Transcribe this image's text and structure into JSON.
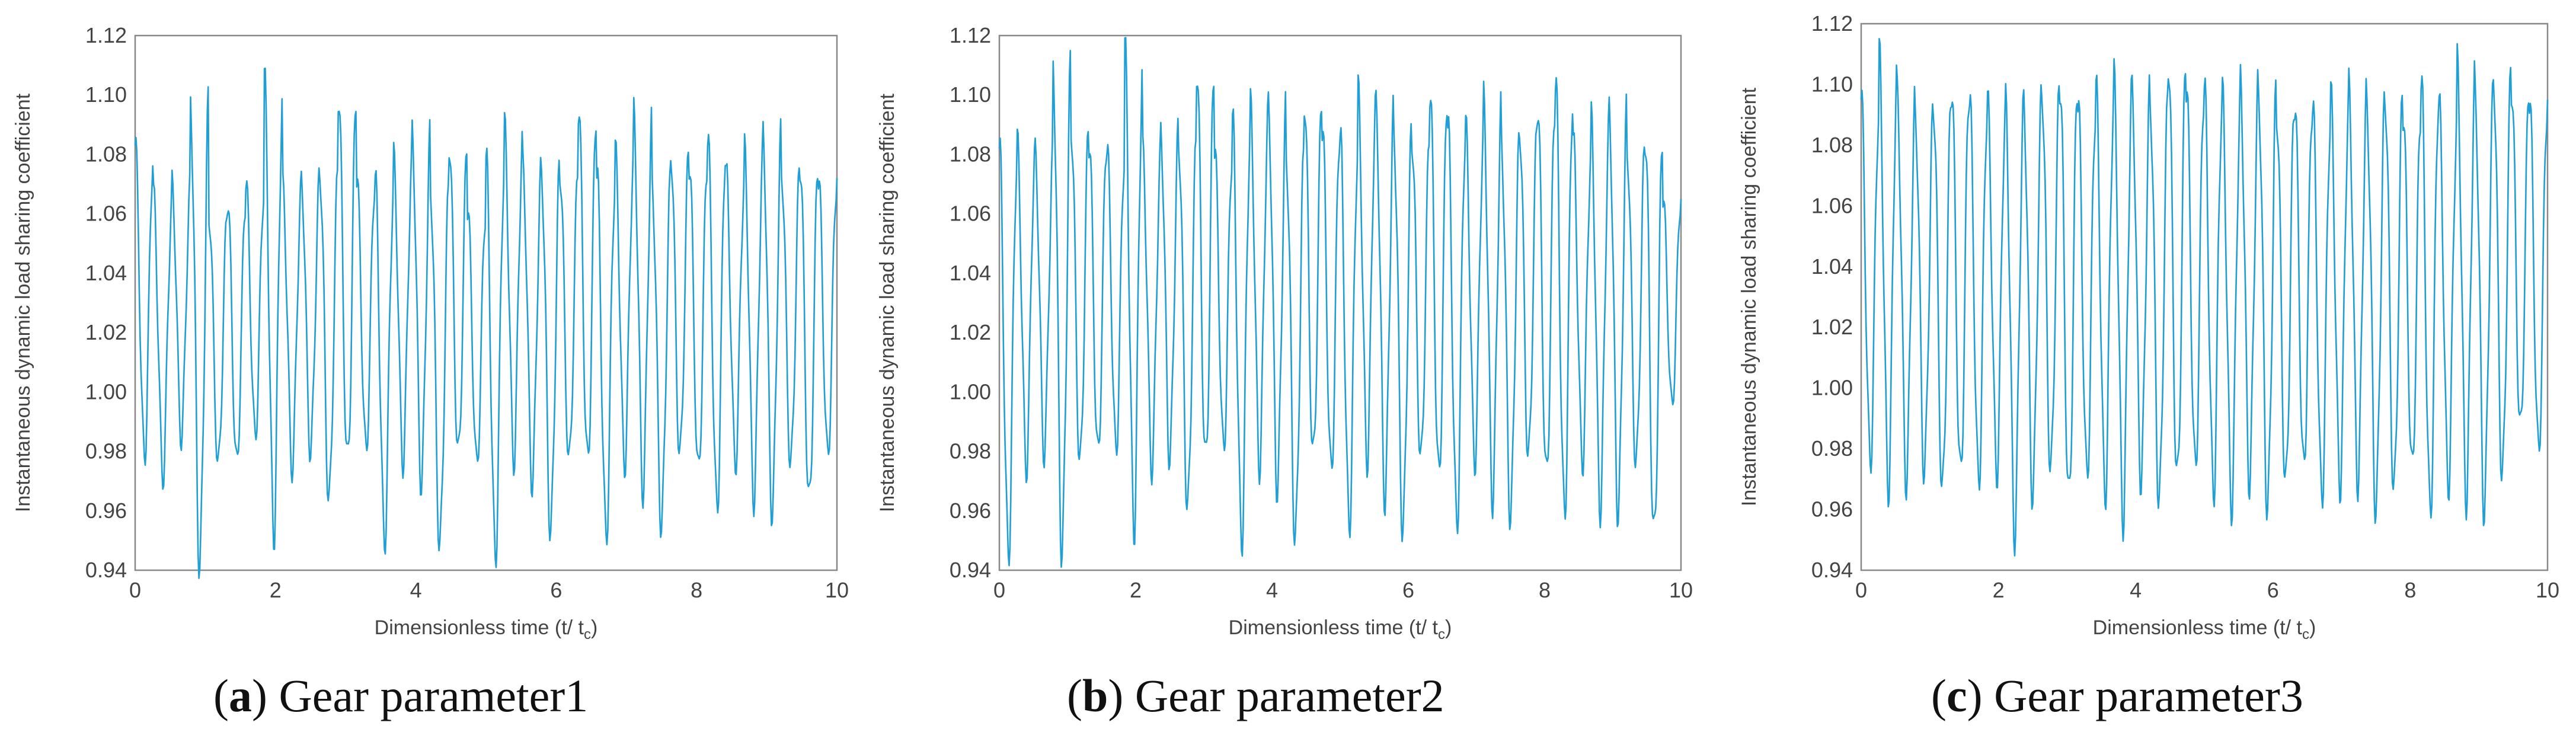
{
  "chart_data": [
    {
      "type": "line",
      "caption_letter": "a",
      "caption_rest": ") Gear parameter1",
      "xlabel": "Dimensionless time (t/ t",
      "xlabel_sub": "c",
      "xlabel_end": ")",
      "ylabel": "Instantaneous dynamic load sharing coefficient",
      "xlim": [
        0,
        10
      ],
      "ylim": [
        0.94,
        1.12
      ],
      "xticks": [
        "0",
        "2",
        "4",
        "6",
        "8",
        "10"
      ],
      "yticks": [
        "0.94",
        "0.96",
        "0.98",
        "1.00",
        "1.02",
        "1.04",
        "1.06",
        "1.08",
        "1.10",
        "1.12"
      ],
      "series": [
        {
          "color": "#1f9fd5",
          "peaks": [
            1.083,
            1.065,
            1.07,
            1.098,
            1.06,
            1.065,
            1.07,
            1.103,
            1.068,
            1.072,
            1.075,
            1.102,
            1.072,
            1.07,
            1.078,
            1.087,
            1.068,
            1.085,
            1.062,
            1.078,
            1.088,
            1.075,
            1.075,
            1.075,
            1.097,
            1.073,
            1.08,
            1.092,
            1.07,
            1.082,
            1.078,
            1.086,
            1.073,
            1.08,
            1.087,
            1.075,
            1.078,
            1.072
          ],
          "troughs": [
            0.978,
            0.972,
            0.985,
            0.942,
            0.975,
            0.975,
            0.985,
            0.953,
            0.975,
            0.98,
            0.963,
            0.975,
            0.98,
            0.95,
            0.977,
            0.97,
            0.948,
            0.978,
            0.975,
            0.945,
            0.978,
            0.97,
            0.953,
            0.976,
            0.975,
            0.951,
            0.976,
            0.968,
            0.955,
            0.978,
            0.972,
            0.96,
            0.976,
            0.965,
            0.96,
            0.975,
            0.962,
            0.978
          ]
        }
      ]
    },
    {
      "type": "line",
      "caption_letter": "b",
      "caption_rest": ") Gear parameter2",
      "xlabel": "Dimensionless time (t/ t",
      "xlabel_sub": "c",
      "xlabel_end": ")",
      "ylabel": "Instantaneous dynamic load sharing coefficient",
      "xlim": [
        0,
        10
      ],
      "ylim": [
        0.94,
        1.12
      ],
      "xticks": [
        "0",
        "2",
        "4",
        "6",
        "8",
        "10"
      ],
      "yticks": [
        "0.94",
        "0.96",
        "0.98",
        "1.00",
        "1.02",
        "1.04",
        "1.06",
        "1.08",
        "1.10",
        "1.12"
      ],
      "series": [
        {
          "color": "#1f9fd5",
          "peaks": [
            1.082,
            1.083,
            1.08,
            1.11,
            1.09,
            1.085,
            1.082,
            1.113,
            1.08,
            1.088,
            1.085,
            1.111,
            1.082,
            1.09,
            1.095,
            1.096,
            1.08,
            1.1,
            1.09,
            1.085,
            1.1,
            1.095,
            1.087,
            1.086,
            1.103,
            1.09,
            1.088,
            1.097,
            1.083,
            1.09,
            1.098,
            1.105,
            1.083,
            1.09,
            1.095,
            1.082,
            1.088,
            1.065
          ],
          "troughs": [
            0.945,
            0.975,
            0.98,
            0.946,
            0.975,
            0.978,
            0.98,
            0.955,
            0.975,
            0.978,
            0.96,
            0.975,
            0.98,
            0.95,
            0.976,
            0.968,
            0.95,
            0.977,
            0.972,
            0.955,
            0.978,
            0.965,
            0.953,
            0.976,
            0.97,
            0.955,
            0.977,
            0.965,
            0.958,
            0.977,
            0.97,
            0.958,
            0.976,
            0.962,
            0.96,
            0.975,
            0.95,
            0.995
          ]
        }
      ]
    },
    {
      "type": "line",
      "caption_letter": "c",
      "caption_rest": ") Gear parameter3",
      "xlabel": "Dimensionless time (t/ t",
      "xlabel_sub": "c",
      "xlabel_end": ")",
      "ylabel": "Instantaneous dynamic load sharing coefficient",
      "xlim": [
        0,
        10
      ],
      "ylim": [
        0.94,
        1.12
      ],
      "xticks": [
        "0",
        "2",
        "4",
        "6",
        "8",
        "10"
      ],
      "yticks": [
        "0.94",
        "0.96",
        "0.98",
        "1.00",
        "1.02",
        "1.04",
        "1.06",
        "1.08",
        "1.10",
        "1.12"
      ],
      "series": [
        {
          "color": "#1f9fd5",
          "peaks": [
            1.095,
            1.108,
            1.095,
            1.09,
            1.095,
            1.1,
            1.095,
            1.093,
            1.092,
            1.095,
            1.1,
            1.102,
            1.095,
            1.098,
            1.1,
            1.098,
            1.095,
            1.11,
            1.1,
            1.098,
            1.095,
            1.1,
            1.098,
            1.092,
            1.095,
            1.092,
            1.095,
            1.098,
            1.093,
            1.098,
            1.092,
            1.102,
            1.092,
            1.105,
            1.095,
            1.105,
            1.1,
            1.095
          ],
          "troughs": [
            0.975,
            0.968,
            0.97,
            0.972,
            0.965,
            0.97,
            0.968,
            0.972,
            0.953,
            0.965,
            0.972,
            0.962,
            0.97,
            0.965,
            0.958,
            0.97,
            0.962,
            0.968,
            0.972,
            0.965,
            0.962,
            0.97,
            0.96,
            0.967,
            0.972,
            0.963,
            0.968,
            0.97,
            0.96,
            0.965,
            0.972,
            0.958,
            0.968,
            0.965,
            0.96,
            0.97,
            0.985,
            0.978
          ]
        }
      ]
    }
  ]
}
